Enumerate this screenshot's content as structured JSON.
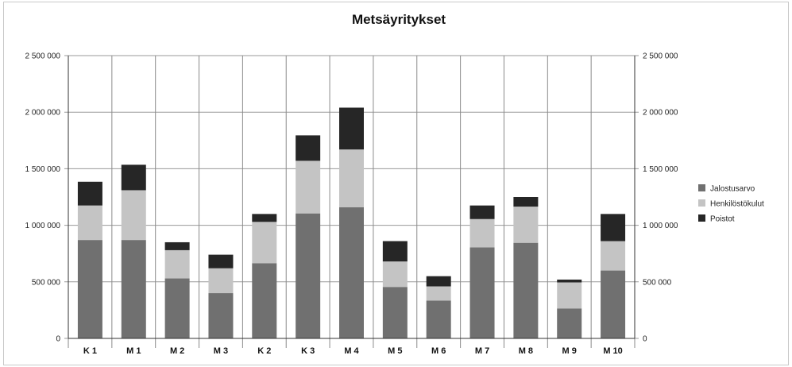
{
  "chart_data": {
    "type": "bar",
    "stacked": true,
    "title": "Metsäyritykset",
    "xlabel": "",
    "ylabel": "",
    "ylim": [
      0,
      2500000
    ],
    "yticks": [
      0,
      500000,
      1000000,
      1500000,
      2000000,
      2500000
    ],
    "ytick_labels": [
      "0",
      "500 000",
      "1 000 000",
      "1 500 000",
      "2 000 000",
      "2 500 000"
    ],
    "categories": [
      "K 1",
      "M 1",
      "M 2",
      "M 3",
      "K 2",
      "K 3",
      "M 4",
      "M 5",
      "M 6",
      "M 7",
      "M 8",
      "M 9",
      "M 10"
    ],
    "series": [
      {
        "name": "Jalostusarvo",
        "color": "#707070",
        "values": [
          870000,
          870000,
          530000,
          400000,
          665000,
          1105000,
          1160000,
          455000,
          335000,
          805000,
          845000,
          265000,
          600000
        ]
      },
      {
        "name": "Henkilöstökulut",
        "color": "#c4c4c4",
        "values": [
          305000,
          440000,
          250000,
          220000,
          365000,
          465000,
          510000,
          225000,
          125000,
          250000,
          320000,
          230000,
          260000
        ]
      },
      {
        "name": "Poistot",
        "color": "#262626",
        "values": [
          210000,
          225000,
          70000,
          120000,
          70000,
          225000,
          370000,
          180000,
          90000,
          120000,
          85000,
          25000,
          240000
        ]
      }
    ],
    "grid": true,
    "secondary_y_axis": true,
    "legend_position": "right"
  }
}
